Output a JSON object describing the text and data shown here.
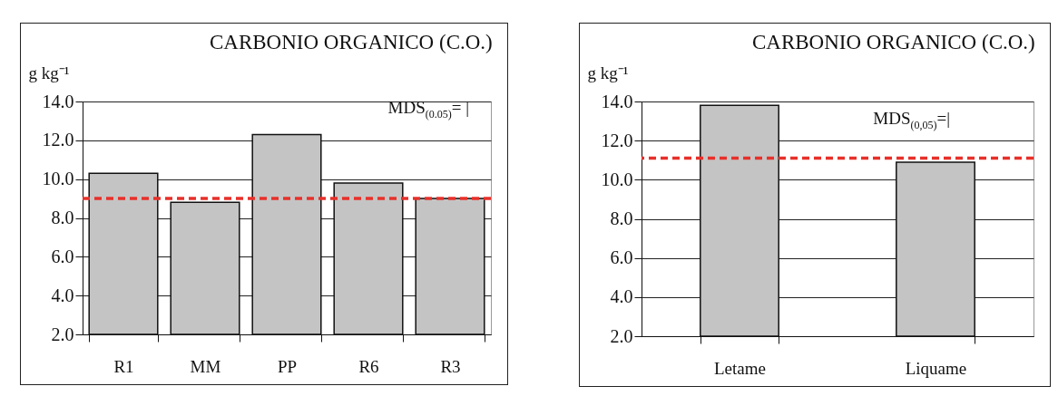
{
  "chart_data": [
    {
      "type": "bar",
      "title": "CARBONIO  ORGANICO (C.O.)",
      "ylabel": "g kg⁻¹",
      "categories": [
        "R1",
        "MM",
        "PP",
        "R6",
        "R3"
      ],
      "values": [
        10.3,
        8.8,
        12.3,
        9.8,
        9.0
      ],
      "color": "#c4c4c4",
      "ylim": [
        2,
        14
      ],
      "yticks": [
        {
          "value": 2,
          "label": "2.0"
        },
        {
          "value": 4,
          "label": "4.0"
        },
        {
          "value": 6,
          "label": "6.0"
        },
        {
          "value": 8,
          "label": "8.0"
        },
        {
          "value": 10,
          "label": "10.0"
        },
        {
          "value": 12,
          "label": "12.0"
        },
        {
          "value": 14,
          "label": "14.0"
        }
      ],
      "grid": "y",
      "ref_lines": [
        {
          "axis": "y",
          "value": 9.0,
          "color": "#e8302a",
          "line_style": "dashed"
        }
      ],
      "annotations": [
        "MDS$_{(0.05)}$= |"
      ]
    },
    {
      "type": "bar",
      "title": "CARBONIO ORGANICO (C.O.)",
      "ylabel": "g kg⁻¹",
      "categories": [
        "Letame",
        "Liquame"
      ],
      "values": [
        13.8,
        10.9
      ],
      "color": "#c4c4c4",
      "ylim": [
        2,
        14
      ],
      "yticks": [
        {
          "value": 2,
          "label": "2.0"
        },
        {
          "value": 4,
          "label": "4.0"
        },
        {
          "value": 6,
          "label": "6.0"
        },
        {
          "value": 8,
          "label": "8.0"
        },
        {
          "value": 10,
          "label": "10.0"
        },
        {
          "value": 12,
          "label": "12.0"
        },
        {
          "value": 14,
          "label": "14.0"
        }
      ],
      "grid": "y",
      "ref_lines": [
        {
          "axis": "y",
          "value": 11.1,
          "color": "#e8302a",
          "line_style": "dashed"
        }
      ],
      "annotations": [
        "MDS$_{(0,05)}$=|"
      ]
    }
  ]
}
